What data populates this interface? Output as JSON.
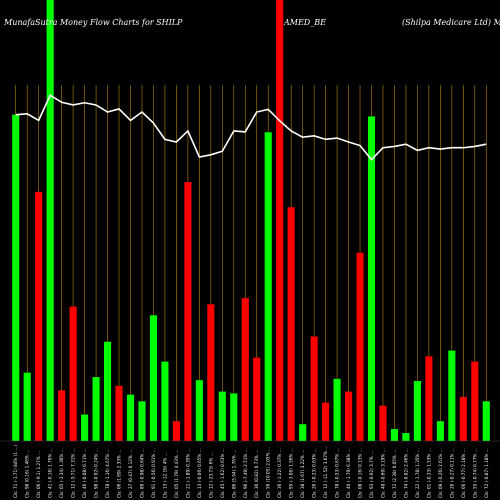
{
  "header": {
    "left": "MunafaSutra  Money Flow  Charts for SHILP",
    "center": "AMED_BE",
    "right": "(Shilpa  Medicare   Ltd)  Ma"
  },
  "colors": {
    "background": "#000000",
    "up": "#00ff00",
    "down": "#ff0000",
    "line": "#ffffff",
    "grid": "#b8860b"
  },
  "chart_data": {
    "type": "bar",
    "y_unit": "relative money flow (0–100 scale)",
    "ylim": [
      0,
      100
    ],
    "grid": "vertical lines at each bar",
    "categories": [
      "Cls: 71 (-1.71) 84% (1 ...)",
      "Cls: 98 (0.16) 1.46% ...",
      "Cls: 06 (-9.1) 1.27% ...",
      "Cls: 41 (-0.16) 1.76% ...",
      "Cls: 05 (-2.34) 1.36% ...",
      "Cls: 12 (-5.71) 7.31% ...",
      "Cls: 46 (-0.08) 0.71% ...",
      "Cls: 98 (-0.92) 0.24% ...",
      "Cls: 78 (-1.16) 4.67% ...",
      "Cls: 06 (1.69) 2.33% ...",
      "Cls: 27 (0.47) 0.12% ...",
      "Cls: 89 (-0.98) 0.64% ...",
      "Cls: 91 (-0.56) 0.91% ...",
      "Cls: 13 (-12.16) 4% ...",
      "Cls: 05 (1.79) 4.43% ...",
      "Cls: 21 (-1.89) 0.35% ...",
      "Cls: 13 (-0.06) 0.65% ...",
      "Cls: 12 (-23.73) 6% ...",
      "Cls: 45 (-1.62) 0.63% ...",
      "Cls: 86 (5.94) 1.76% ...",
      "Cls: 96 (-7.49) 2.51% ...",
      "Cls: 30 (0.82) 0.73% ...",
      "Cls: 56 (10.05) 2.05% ...",
      "Cls: 36 (-1.22) 0.37% ...",
      "Cls: 95 (-3.06) 1.56% ...",
      "Cls: 38 (1.67) 3.22% ...",
      "Cls: 26 (-0.23) 0.63% ...",
      "Cls: 12 (-11.52) 3.67% ...",
      "Cls: 78 (-0.53) 0.67% ...",
      "Cls: 40 (-1.79) 6.38% ...",
      "Cls: 08 (-0.16) 0.13% ...",
      "Cls: 93 (-0.92) 3.7% ...",
      "Cls: 48 (-0.69) 3.19% ...",
      "Cls: 72 (2.38) 0.05% ...",
      "Cls: 74 (-0.82) 2.46% ...",
      "Cls: 22 (-1.78) 1.35% ...",
      "Cls: 01 (-0.33) 1.53% ...",
      "Cls: 09 (-0.26) 2.61% ...",
      "Cls: 26 (-0.27) 0.11% ...",
      "Cls: 66 (-0.77) 2.18% ...",
      "Cls: 55 (-0.74) 0.77% ...",
      "Cls: 72 (-0.87) 1.18% ..."
    ],
    "values": [
      74,
      15.5,
      56.5,
      100,
      11.5,
      30.5,
      6,
      14.5,
      22.5,
      12.5,
      10.5,
      9,
      28.5,
      18,
      4.5,
      58.7,
      13.8,
      31,
      11.2,
      10.8,
      32.4,
      18.9,
      70,
      100,
      53,
      3.8,
      23.7,
      8.7,
      14.1,
      11.2,
      42.7,
      73.6,
      8,
      2.7,
      1.8,
      13.6,
      19.2,
      4.5,
      20.5,
      10,
      18,
      9
    ],
    "directions": [
      "up",
      "up",
      "down",
      "up",
      "down",
      "down",
      "up",
      "up",
      "up",
      "down",
      "up",
      "up",
      "up",
      "up",
      "down",
      "down",
      "up",
      "down",
      "up",
      "up",
      "down",
      "down",
      "up",
      "down",
      "down",
      "up",
      "down",
      "down",
      "up",
      "down",
      "down",
      "up",
      "down",
      "up",
      "up",
      "up",
      "down",
      "up",
      "up",
      "down",
      "down",
      "up"
    ],
    "line": {
      "name": "",
      "values": [
        74,
        74.2,
        72.7,
        78.4,
        76.8,
        76.2,
        76.7,
        76.2,
        74.6,
        75.3,
        72.7,
        74.6,
        72.1,
        68.4,
        67.8,
        70.3,
        64.4,
        64.9,
        65.7,
        70.3,
        70.1,
        74.6,
        75.2,
        72.6,
        70.3,
        68.9,
        69.2,
        68.4,
        68.7,
        67.8,
        67,
        63.8,
        66.5,
        66.8,
        67.3,
        65.9,
        66.5,
        66.2,
        66.5,
        66.5,
        66.8,
        67.3
      ]
    }
  }
}
